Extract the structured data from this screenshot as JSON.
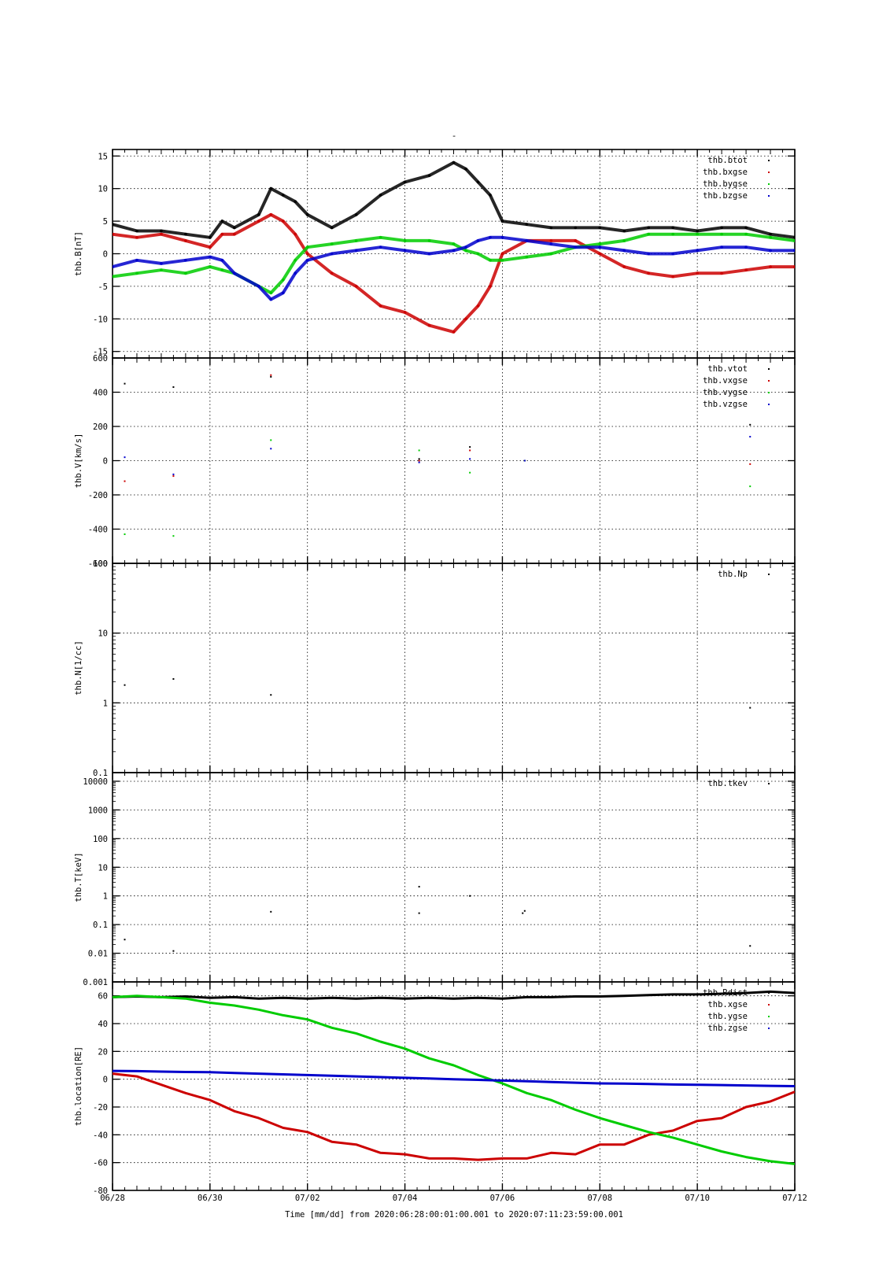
{
  "title_mark": "-",
  "x_axis": {
    "tick_labels": [
      "06/28",
      "06/30",
      "07/02",
      "07/04",
      "07/06",
      "07/08",
      "07/10",
      "07/12"
    ],
    "tick_days": [
      0,
      2,
      4,
      6,
      8,
      10,
      12,
      14
    ],
    "caption": "Time [mm/dd]  from 2020:06:28:00:01:00.001  to  2020:07:11:23:59:00.001"
  },
  "colors": {
    "black": "#000000",
    "red": "#cc0000",
    "green": "#00cc00",
    "blue": "#0000cc"
  },
  "chart_data": [
    {
      "type": "scatter",
      "ylabel": "thb.B[nT]",
      "ylim": [
        -16,
        16
      ],
      "yticks": [
        -15,
        -10,
        -5,
        0,
        5,
        10,
        15
      ],
      "grid": true,
      "legend_placement": "top-right",
      "series": [
        {
          "name": "thb.btot",
          "color": "#000000",
          "x": [
            "06/28",
            "06/28 12h",
            "06/29",
            "06/29 12h",
            "06/30",
            "06/30 06h",
            "06/30 12h",
            "07/01",
            "07/01 06h",
            "07/01 12h",
            "07/01 18h",
            "07/02",
            "07/02 12h",
            "07/03",
            "07/03 12h",
            "07/04",
            "07/04 12h",
            "07/05",
            "07/05 06h",
            "07/05 12h",
            "07/05 18h",
            "07/06",
            "07/06 12h",
            "07/07",
            "07/07 12h",
            "07/08",
            "07/08 12h",
            "07/09",
            "07/09 12h",
            "07/10",
            "07/10 12h",
            "07/11",
            "07/11 12h",
            "07/12"
          ],
          "y": [
            4.5,
            3.5,
            3.5,
            3.0,
            2.5,
            5.0,
            4.0,
            6.0,
            10.0,
            9.0,
            8.0,
            6.0,
            4.0,
            6.0,
            9.0,
            11.0,
            12.0,
            14.0,
            13.0,
            11.0,
            9.0,
            5.0,
            4.5,
            4.0,
            4.0,
            4.0,
            3.5,
            4.0,
            4.0,
            3.5,
            4.0,
            4.0,
            3.0,
            2.5
          ]
        },
        {
          "name": "thb.bxgse",
          "color": "#cc0000",
          "x": [
            "06/28",
            "06/28 12h",
            "06/29",
            "06/29 12h",
            "06/30",
            "06/30 06h",
            "06/30 12h",
            "07/01",
            "07/01 06h",
            "07/01 12h",
            "07/01 18h",
            "07/02",
            "07/02 12h",
            "07/03",
            "07/03 12h",
            "07/04",
            "07/04 12h",
            "07/05",
            "07/05 06h",
            "07/05 12h",
            "07/05 18h",
            "07/06",
            "07/06 12h",
            "07/07",
            "07/07 12h",
            "07/08",
            "07/08 12h",
            "07/09",
            "07/09 12h",
            "07/10",
            "07/10 12h",
            "07/11",
            "07/11 12h",
            "07/12"
          ],
          "y": [
            3.0,
            2.5,
            3.0,
            2.0,
            1.0,
            3.0,
            3.0,
            5.0,
            6.0,
            5.0,
            3.0,
            0.0,
            -3.0,
            -5.0,
            -8.0,
            -9.0,
            -11.0,
            -12.0,
            -10.0,
            -8.0,
            -5.0,
            0.0,
            2.0,
            2.0,
            2.0,
            0.0,
            -2.0,
            -3.0,
            -3.5,
            -3.0,
            -3.0,
            -2.5,
            -2.0,
            -2.0
          ]
        },
        {
          "name": "thb.bygse",
          "color": "#00cc00",
          "x": [
            "06/28",
            "06/28 12h",
            "06/29",
            "06/29 12h",
            "06/30",
            "06/30 06h",
            "06/30 12h",
            "07/01",
            "07/01 06h",
            "07/01 12h",
            "07/01 18h",
            "07/02",
            "07/02 12h",
            "07/03",
            "07/03 12h",
            "07/04",
            "07/04 12h",
            "07/05",
            "07/05 06h",
            "07/05 12h",
            "07/05 18h",
            "07/06",
            "07/06 12h",
            "07/07",
            "07/07 12h",
            "07/08",
            "07/08 12h",
            "07/09",
            "07/09 12h",
            "07/10",
            "07/10 12h",
            "07/11",
            "07/11 12h",
            "07/12"
          ],
          "y": [
            -3.5,
            -3.0,
            -2.5,
            -3.0,
            -2.0,
            -2.5,
            -3.0,
            -5.0,
            -6.0,
            -4.0,
            -1.0,
            1.0,
            1.5,
            2.0,
            2.5,
            2.0,
            2.0,
            1.5,
            0.5,
            0.0,
            -1.0,
            -1.0,
            -0.5,
            0.0,
            1.0,
            1.5,
            2.0,
            3.0,
            3.0,
            3.0,
            3.0,
            3.0,
            2.5,
            2.0
          ]
        },
        {
          "name": "thb.bzgse",
          "color": "#0000cc",
          "x": [
            "06/28",
            "06/28 12h",
            "06/29",
            "06/29 12h",
            "06/30",
            "06/30 06h",
            "06/30 12h",
            "07/01",
            "07/01 06h",
            "07/01 12h",
            "07/01 18h",
            "07/02",
            "07/02 12h",
            "07/03",
            "07/03 12h",
            "07/04",
            "07/04 12h",
            "07/05",
            "07/05 06h",
            "07/05 12h",
            "07/05 18h",
            "07/06",
            "07/06 12h",
            "07/07",
            "07/07 12h",
            "07/08",
            "07/08 12h",
            "07/09",
            "07/09 12h",
            "07/10",
            "07/10 12h",
            "07/11",
            "07/11 12h",
            "07/12"
          ],
          "y": [
            -2.0,
            -1.0,
            -1.5,
            -1.0,
            -0.5,
            -1.0,
            -3.0,
            -5.0,
            -7.0,
            -6.0,
            -3.0,
            -1.0,
            0.0,
            0.5,
            1.0,
            0.5,
            0.0,
            0.5,
            1.0,
            2.0,
            2.5,
            2.5,
            2.0,
            1.5,
            1.0,
            1.0,
            0.5,
            0.0,
            0.0,
            0.5,
            1.0,
            1.0,
            0.5,
            0.5
          ]
        }
      ]
    },
    {
      "type": "scatter",
      "ylabel": "thb.V[km/s]",
      "ylim": [
        -600,
        600
      ],
      "yticks": [
        -600,
        -400,
        -200,
        0,
        200,
        400,
        600
      ],
      "grid": true,
      "legend_placement": "top-right",
      "series": [
        {
          "name": "thb.vtot",
          "color": "#000000",
          "x": [
            "06/28 06h",
            "06/29 06h",
            "07/01 06h",
            "07/04 07h",
            "07/05 08h",
            "07/06 11h",
            "07/11 02h"
          ],
          "y": [
            450,
            430,
            490,
            10,
            80,
            0,
            210
          ]
        },
        {
          "name": "thb.vxgse",
          "color": "#cc0000",
          "x": [
            "06/28 06h",
            "06/29 06h",
            "07/01 06h",
            "07/04 07h",
            "07/05 08h",
            "07/06 11h",
            "07/11 02h"
          ],
          "y": [
            -120,
            -90,
            500,
            0,
            60,
            0,
            -20
          ]
        },
        {
          "name": "thb.vygse",
          "color": "#00cc00",
          "x": [
            "06/28 06h",
            "06/29 06h",
            "07/01 06h",
            "07/04 07h",
            "07/05 08h",
            "07/06 11h",
            "07/11 02h"
          ],
          "y": [
            -430,
            -440,
            120,
            60,
            -70,
            0,
            -150
          ]
        },
        {
          "name": "thb.vzgse",
          "color": "#0000cc",
          "x": [
            "06/28 06h",
            "06/29 06h",
            "07/01 06h",
            "07/04 07h",
            "07/05 08h",
            "07/06 11h",
            "07/11 02h"
          ],
          "y": [
            20,
            -80,
            70,
            -10,
            10,
            0,
            140
          ]
        }
      ]
    },
    {
      "type": "scatter",
      "ylabel": "thb.N[1/cc]",
      "yscale": "log",
      "ylim": [
        0.1,
        100
      ],
      "yticks": [
        0.1,
        1,
        10,
        100
      ],
      "ytick_labels": [
        "0.1",
        "1",
        "10",
        "100"
      ],
      "grid": true,
      "legend_placement": "top-right",
      "series": [
        {
          "name": "thb.Np",
          "color": "#000000",
          "x": [
            "06/28 06h",
            "06/29 06h",
            "07/01 06h",
            "07/11 02h"
          ],
          "y": [
            1.8,
            2.2,
            1.3,
            0.85
          ]
        }
      ]
    },
    {
      "type": "scatter",
      "ylabel": "thb.T[keV]",
      "yscale": "log",
      "ylim": [
        0.001,
        20000
      ],
      "yticks": [
        0.001,
        0.01,
        0.1,
        1,
        10,
        100,
        1000,
        10000
      ],
      "ytick_labels": [
        "0.001",
        "0.01",
        "0.1",
        "1",
        "10",
        "100",
        "1000",
        "10000"
      ],
      "grid": true,
      "legend_placement": "top-right",
      "series": [
        {
          "name": "thb.tkev",
          "color": "#000000",
          "x": [
            "06/28 06h",
            "06/29 06h",
            "07/01 06h",
            "07/04 07h",
            "07/04 07h",
            "07/05 08h",
            "07/06 10h",
            "07/06 11h",
            "07/11 02h"
          ],
          "y": [
            0.03,
            0.012,
            0.28,
            2.1,
            0.25,
            1.0,
            0.25,
            0.3,
            0.018
          ]
        }
      ]
    },
    {
      "type": "line",
      "ylabel": "thb.location[RE]",
      "ylim": [
        -80,
        70
      ],
      "yticks": [
        -80,
        -60,
        -40,
        -20,
        0,
        20,
        40,
        60
      ],
      "grid": true,
      "legend_placement": "top-right",
      "series": [
        {
          "name": "thb.Rdist",
          "color": "#000000",
          "x": [
            "06/28",
            "06/28 12h",
            "06/29",
            "06/29 12h",
            "06/30",
            "06/30 12h",
            "07/01",
            "07/01 12h",
            "07/02",
            "07/02 12h",
            "07/03",
            "07/03 12h",
            "07/04",
            "07/04 12h",
            "07/05",
            "07/05 12h",
            "07/06",
            "07/06 12h",
            "07/07",
            "07/07 12h",
            "07/08",
            "07/08 12h",
            "07/09",
            "07/09 12h",
            "07/10",
            "07/10 12h",
            "07/11",
            "07/11 12h",
            "07/12"
          ],
          "y": [
            59,
            59.5,
            59,
            59.5,
            58.5,
            59,
            58,
            58.5,
            58,
            58.5,
            58,
            58.5,
            58,
            58.5,
            58,
            58.5,
            58,
            59,
            59,
            59.5,
            59.5,
            60,
            60.5,
            61,
            61,
            61.5,
            62,
            63,
            62
          ]
        },
        {
          "name": "thb.xgse",
          "color": "#cc0000",
          "x": [
            "06/28",
            "06/28 12h",
            "06/29",
            "06/29 12h",
            "06/30",
            "06/30 12h",
            "07/01",
            "07/01 12h",
            "07/02",
            "07/02 12h",
            "07/03",
            "07/03 12h",
            "07/04",
            "07/04 12h",
            "07/05",
            "07/05 12h",
            "07/06",
            "07/06 12h",
            "07/07",
            "07/07 12h",
            "07/08",
            "07/08 12h",
            "07/09",
            "07/09 12h",
            "07/10",
            "07/10 12h",
            "07/11",
            "07/11 12h",
            "07/12"
          ],
          "y": [
            4,
            2,
            -4,
            -10,
            -15,
            -23,
            -28,
            -35,
            -38,
            -45,
            -47,
            -53,
            -54,
            -57,
            -57,
            -58,
            -57,
            -57,
            -53,
            -54,
            -47,
            -47,
            -40,
            -37,
            -30,
            -28,
            -20,
            -16,
            -9
          ]
        },
        {
          "name": "thb.ygse",
          "color": "#00cc00",
          "x": [
            "06/28",
            "06/28 12h",
            "06/29",
            "06/29 12h",
            "06/30",
            "06/30 12h",
            "07/01",
            "07/01 12h",
            "07/02",
            "07/02 12h",
            "07/03",
            "07/03 12h",
            "07/04",
            "07/04 12h",
            "07/05",
            "07/05 12h",
            "07/06",
            "07/06 12h",
            "07/07",
            "07/07 12h",
            "07/08",
            "07/08 12h",
            "07/09",
            "07/09 12h",
            "07/10",
            "07/10 12h",
            "07/11",
            "07/11 12h",
            "07/12"
          ],
          "y": [
            59,
            60,
            59,
            58,
            55,
            53,
            50,
            46,
            43,
            37,
            33,
            27,
            22,
            15,
            10,
            3,
            -3,
            -10,
            -15,
            -22,
            -28,
            -33,
            -38,
            -42,
            -47,
            -52,
            -56,
            -59,
            -61
          ]
        },
        {
          "name": "thb.zgse",
          "color": "#0000cc",
          "x": [
            "06/28",
            "06/28 12h",
            "06/29",
            "06/29 12h",
            "06/30",
            "06/30 12h",
            "07/01",
            "07/01 12h",
            "07/02",
            "07/02 12h",
            "07/03",
            "07/03 12h",
            "07/04",
            "07/04 12h",
            "07/05",
            "07/05 12h",
            "07/06",
            "07/06 12h",
            "07/07",
            "07/07 12h",
            "07/08",
            "07/08 12h",
            "07/09",
            "07/09 12h",
            "07/10",
            "07/10 12h",
            "07/11",
            "07/11 12h",
            "07/12"
          ],
          "y": [
            6,
            5.8,
            5.5,
            5.2,
            5,
            4.5,
            4,
            3.5,
            3,
            2.5,
            2,
            1.5,
            1,
            0.5,
            0,
            -0.5,
            -1,
            -1.5,
            -2,
            -2.5,
            -3,
            -3.2,
            -3.5,
            -3.8,
            -4,
            -4.2,
            -4.5,
            -4.8,
            -5
          ]
        }
      ]
    }
  ]
}
